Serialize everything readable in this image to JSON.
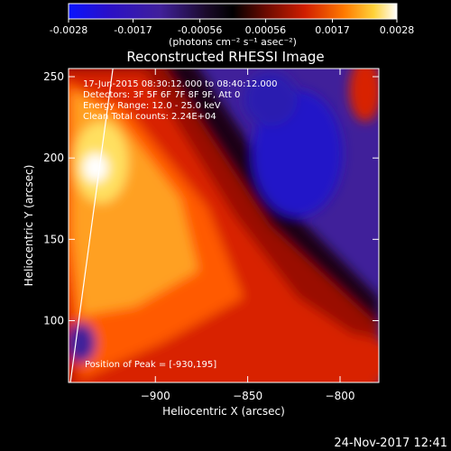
{
  "colorbar": {
    "ticks": [
      "-0.0028",
      "-0.0017",
      "-0.00056",
      "0.00056",
      "0.0017",
      "0.0028"
    ],
    "unit_label": "(photons cm⁻² s⁻¹ asec⁻²)",
    "range": [
      -0.0028,
      0.0028
    ]
  },
  "chart_data": {
    "type": "heatmap",
    "title": "Reconstructed RHESSI Image",
    "xlabel": "Heliocentric X (arcsec)",
    "ylabel": "Heliocentric Y (arcsec)",
    "xlim": [
      -947,
      -779
    ],
    "ylim": [
      62,
      255
    ],
    "x_ticks": [
      -900,
      -850,
      -800
    ],
    "y_ticks": [
      100,
      150,
      200,
      250
    ],
    "annotations": [
      "17-Jun-2015 08:30:12.000 to 08:40:12.000",
      "Detectors: 3F 5F 6F 7F 8F 9F, Att 0",
      "Energy Range: 12.0 - 25.0 keV",
      "Clean    Total counts: 2.24E+04"
    ],
    "peak_label": "Position of Peak = [-930,195]",
    "peak": [
      -930,
      195
    ],
    "limb_line": [
      [
        -946,
        62
      ],
      [
        -923,
        255
      ]
    ]
  },
  "footer": {
    "timestamp": "24-Nov-2017 12:41"
  },
  "colors": {
    "background": "#000000",
    "text": "#ffffff"
  }
}
